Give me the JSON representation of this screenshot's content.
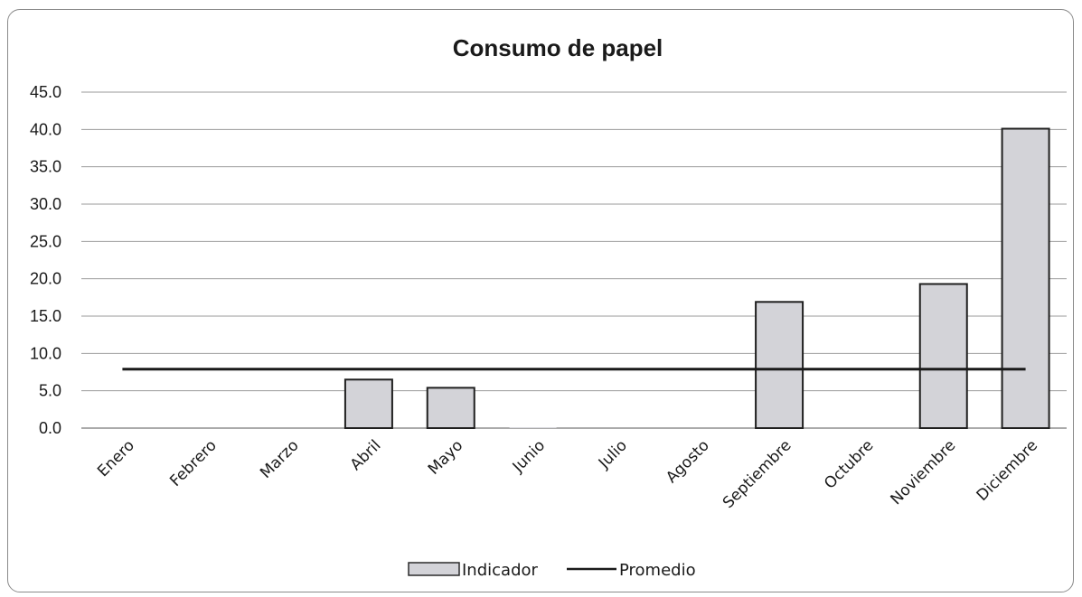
{
  "chart_data": {
    "type": "bar",
    "title": "Consumo de papel",
    "categories": [
      "Enero",
      "Febrero",
      "Marzo",
      "Abril",
      "Mayo",
      "Junio",
      "Julio",
      "Agosto",
      "Septiembre",
      "Octubre",
      "Noviembre",
      "Diciembre"
    ],
    "series": [
      {
        "name": "Indicador",
        "type": "bar",
        "values": [
          0,
          0,
          0,
          6.5,
          5.4,
          0.1,
          0,
          0,
          16.9,
          0,
          19.3,
          40.1
        ],
        "color": "#d3d3d8"
      },
      {
        "name": "Promedio",
        "type": "line",
        "values": [
          7.9,
          7.9,
          7.9,
          7.9,
          7.9,
          7.9,
          7.9,
          7.9,
          7.9,
          7.9,
          7.9,
          7.9
        ],
        "color": "#1a1a1a"
      }
    ],
    "ylim": [
      0,
      45
    ],
    "yticks": [
      "0.0",
      "5.0",
      "10.0",
      "15.0",
      "20.0",
      "25.0",
      "30.0",
      "35.0",
      "40.0",
      "45.0"
    ],
    "ytick_values": [
      0,
      5,
      10,
      15,
      20,
      25,
      30,
      35,
      40,
      45
    ],
    "xlabel": "",
    "ylabel": "",
    "grid": true,
    "legend_position": "bottom"
  }
}
